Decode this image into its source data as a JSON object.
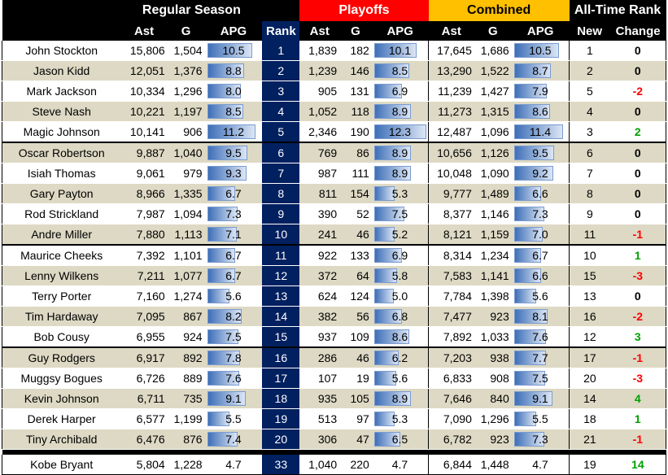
{
  "headers": {
    "regular_season": "Regular Season",
    "playoffs": "Playoffs",
    "combined": "Combined",
    "all_time_rank": "All-Time Rank",
    "ast": "Ast",
    "g": "G",
    "apg": "APG",
    "rank": "Rank",
    "new": "New",
    "change": "Change"
  },
  "rows": [
    {
      "name": "John Stockton",
      "rs_ast": "15,806",
      "rs_g": "1,504",
      "rs_apg": "10.5",
      "rank": "1",
      "po_ast": "1,839",
      "po_g": "182",
      "po_apg": "10.1",
      "co_ast": "17,645",
      "co_g": "1,686",
      "co_apg": "10.5",
      "new": "1",
      "change": "0"
    },
    {
      "name": "Jason Kidd",
      "rs_ast": "12,051",
      "rs_g": "1,376",
      "rs_apg": "8.8",
      "rank": "2",
      "po_ast": "1,239",
      "po_g": "146",
      "po_apg": "8.5",
      "co_ast": "13,290",
      "co_g": "1,522",
      "co_apg": "8.7",
      "new": "2",
      "change": "0"
    },
    {
      "name": "Mark Jackson",
      "rs_ast": "10,334",
      "rs_g": "1,296",
      "rs_apg": "8.0",
      "rank": "3",
      "po_ast": "905",
      "po_g": "131",
      "po_apg": "6.9",
      "co_ast": "11,239",
      "co_g": "1,427",
      "co_apg": "7.9",
      "new": "5",
      "change": "-2"
    },
    {
      "name": "Steve Nash",
      "rs_ast": "10,221",
      "rs_g": "1,197",
      "rs_apg": "8.5",
      "rank": "4",
      "po_ast": "1,052",
      "po_g": "118",
      "po_apg": "8.9",
      "co_ast": "11,273",
      "co_g": "1,315",
      "co_apg": "8.6",
      "new": "4",
      "change": "0"
    },
    {
      "name": "Magic Johnson",
      "rs_ast": "10,141",
      "rs_g": "906",
      "rs_apg": "11.2",
      "rank": "5",
      "po_ast": "2,346",
      "po_g": "190",
      "po_apg": "12.3",
      "co_ast": "12,487",
      "co_g": "1,096",
      "co_apg": "11.4",
      "new": "3",
      "change": "2"
    },
    {
      "name": "Oscar Robertson",
      "rs_ast": "9,887",
      "rs_g": "1,040",
      "rs_apg": "9.5",
      "rank": "6",
      "po_ast": "769",
      "po_g": "86",
      "po_apg": "8.9",
      "co_ast": "10,656",
      "co_g": "1,126",
      "co_apg": "9.5",
      "new": "6",
      "change": "0"
    },
    {
      "name": "Isiah Thomas",
      "rs_ast": "9,061",
      "rs_g": "979",
      "rs_apg": "9.3",
      "rank": "7",
      "po_ast": "987",
      "po_g": "111",
      "po_apg": "8.9",
      "co_ast": "10,048",
      "co_g": "1,090",
      "co_apg": "9.2",
      "new": "7",
      "change": "0"
    },
    {
      "name": "Gary Payton",
      "rs_ast": "8,966",
      "rs_g": "1,335",
      "rs_apg": "6.7",
      "rank": "8",
      "po_ast": "811",
      "po_g": "154",
      "po_apg": "5.3",
      "co_ast": "9,777",
      "co_g": "1,489",
      "co_apg": "6.6",
      "new": "8",
      "change": "0"
    },
    {
      "name": "Rod Strickland",
      "rs_ast": "7,987",
      "rs_g": "1,094",
      "rs_apg": "7.3",
      "rank": "9",
      "po_ast": "390",
      "po_g": "52",
      "po_apg": "7.5",
      "co_ast": "8,377",
      "co_g": "1,146",
      "co_apg": "7.3",
      "new": "9",
      "change": "0"
    },
    {
      "name": "Andre Miller",
      "rs_ast": "7,880",
      "rs_g": "1,113",
      "rs_apg": "7.1",
      "rank": "10",
      "po_ast": "241",
      "po_g": "46",
      "po_apg": "5.2",
      "co_ast": "8,121",
      "co_g": "1,159",
      "co_apg": "7.0",
      "new": "11",
      "change": "-1"
    },
    {
      "name": "Maurice Cheeks",
      "rs_ast": "7,392",
      "rs_g": "1,101",
      "rs_apg": "6.7",
      "rank": "11",
      "po_ast": "922",
      "po_g": "133",
      "po_apg": "6.9",
      "co_ast": "8,314",
      "co_g": "1,234",
      "co_apg": "6.7",
      "new": "10",
      "change": "1"
    },
    {
      "name": "Lenny Wilkens",
      "rs_ast": "7,211",
      "rs_g": "1,077",
      "rs_apg": "6.7",
      "rank": "12",
      "po_ast": "372",
      "po_g": "64",
      "po_apg": "5.8",
      "co_ast": "7,583",
      "co_g": "1,141",
      "co_apg": "6.6",
      "new": "15",
      "change": "-3"
    },
    {
      "name": "Terry Porter",
      "rs_ast": "7,160",
      "rs_g": "1,274",
      "rs_apg": "5.6",
      "rank": "13",
      "po_ast": "624",
      "po_g": "124",
      "po_apg": "5.0",
      "co_ast": "7,784",
      "co_g": "1,398",
      "co_apg": "5.6",
      "new": "13",
      "change": "0"
    },
    {
      "name": "Tim Hardaway",
      "rs_ast": "7,095",
      "rs_g": "867",
      "rs_apg": "8.2",
      "rank": "14",
      "po_ast": "382",
      "po_g": "56",
      "po_apg": "6.8",
      "co_ast": "7,477",
      "co_g": "923",
      "co_apg": "8.1",
      "new": "16",
      "change": "-2"
    },
    {
      "name": "Bob Cousy",
      "rs_ast": "6,955",
      "rs_g": "924",
      "rs_apg": "7.5",
      "rank": "15",
      "po_ast": "937",
      "po_g": "109",
      "po_apg": "8.6",
      "co_ast": "7,892",
      "co_g": "1,033",
      "co_apg": "7.6",
      "new": "12",
      "change": "3"
    },
    {
      "name": "Guy Rodgers",
      "rs_ast": "6,917",
      "rs_g": "892",
      "rs_apg": "7.8",
      "rank": "16",
      "po_ast": "286",
      "po_g": "46",
      "po_apg": "6.2",
      "co_ast": "7,203",
      "co_g": "938",
      "co_apg": "7.7",
      "new": "17",
      "change": "-1"
    },
    {
      "name": "Muggsy Bogues",
      "rs_ast": "6,726",
      "rs_g": "889",
      "rs_apg": "7.6",
      "rank": "17",
      "po_ast": "107",
      "po_g": "19",
      "po_apg": "5.6",
      "co_ast": "6,833",
      "co_g": "908",
      "co_apg": "7.5",
      "new": "20",
      "change": "-3"
    },
    {
      "name": "Kevin Johnson",
      "rs_ast": "6,711",
      "rs_g": "735",
      "rs_apg": "9.1",
      "rank": "18",
      "po_ast": "935",
      "po_g": "105",
      "po_apg": "8.9",
      "co_ast": "7,646",
      "co_g": "840",
      "co_apg": "9.1",
      "new": "14",
      "change": "4"
    },
    {
      "name": "Derek Harper",
      "rs_ast": "6,577",
      "rs_g": "1,199",
      "rs_apg": "5.5",
      "rank": "19",
      "po_ast": "513",
      "po_g": "97",
      "po_apg": "5.3",
      "co_ast": "7,090",
      "co_g": "1,296",
      "co_apg": "5.5",
      "new": "18",
      "change": "1"
    },
    {
      "name": "Tiny Archibald",
      "rs_ast": "6,476",
      "rs_g": "876",
      "rs_apg": "7.4",
      "rank": "20",
      "po_ast": "306",
      "po_g": "47",
      "po_apg": "6.5",
      "co_ast": "6,782",
      "co_g": "923",
      "co_apg": "7.3",
      "new": "21",
      "change": "-1"
    }
  ],
  "kobe": {
    "name": "Kobe Bryant",
    "rs_ast": "5,804",
    "rs_g": "1,228",
    "rs_apg": "4.7",
    "rank": "33",
    "po_ast": "1,040",
    "po_g": "220",
    "po_apg": "4.7",
    "co_ast": "6,844",
    "co_g": "1,448",
    "co_apg": "4.7",
    "new": "19",
    "change": "14"
  }
}
